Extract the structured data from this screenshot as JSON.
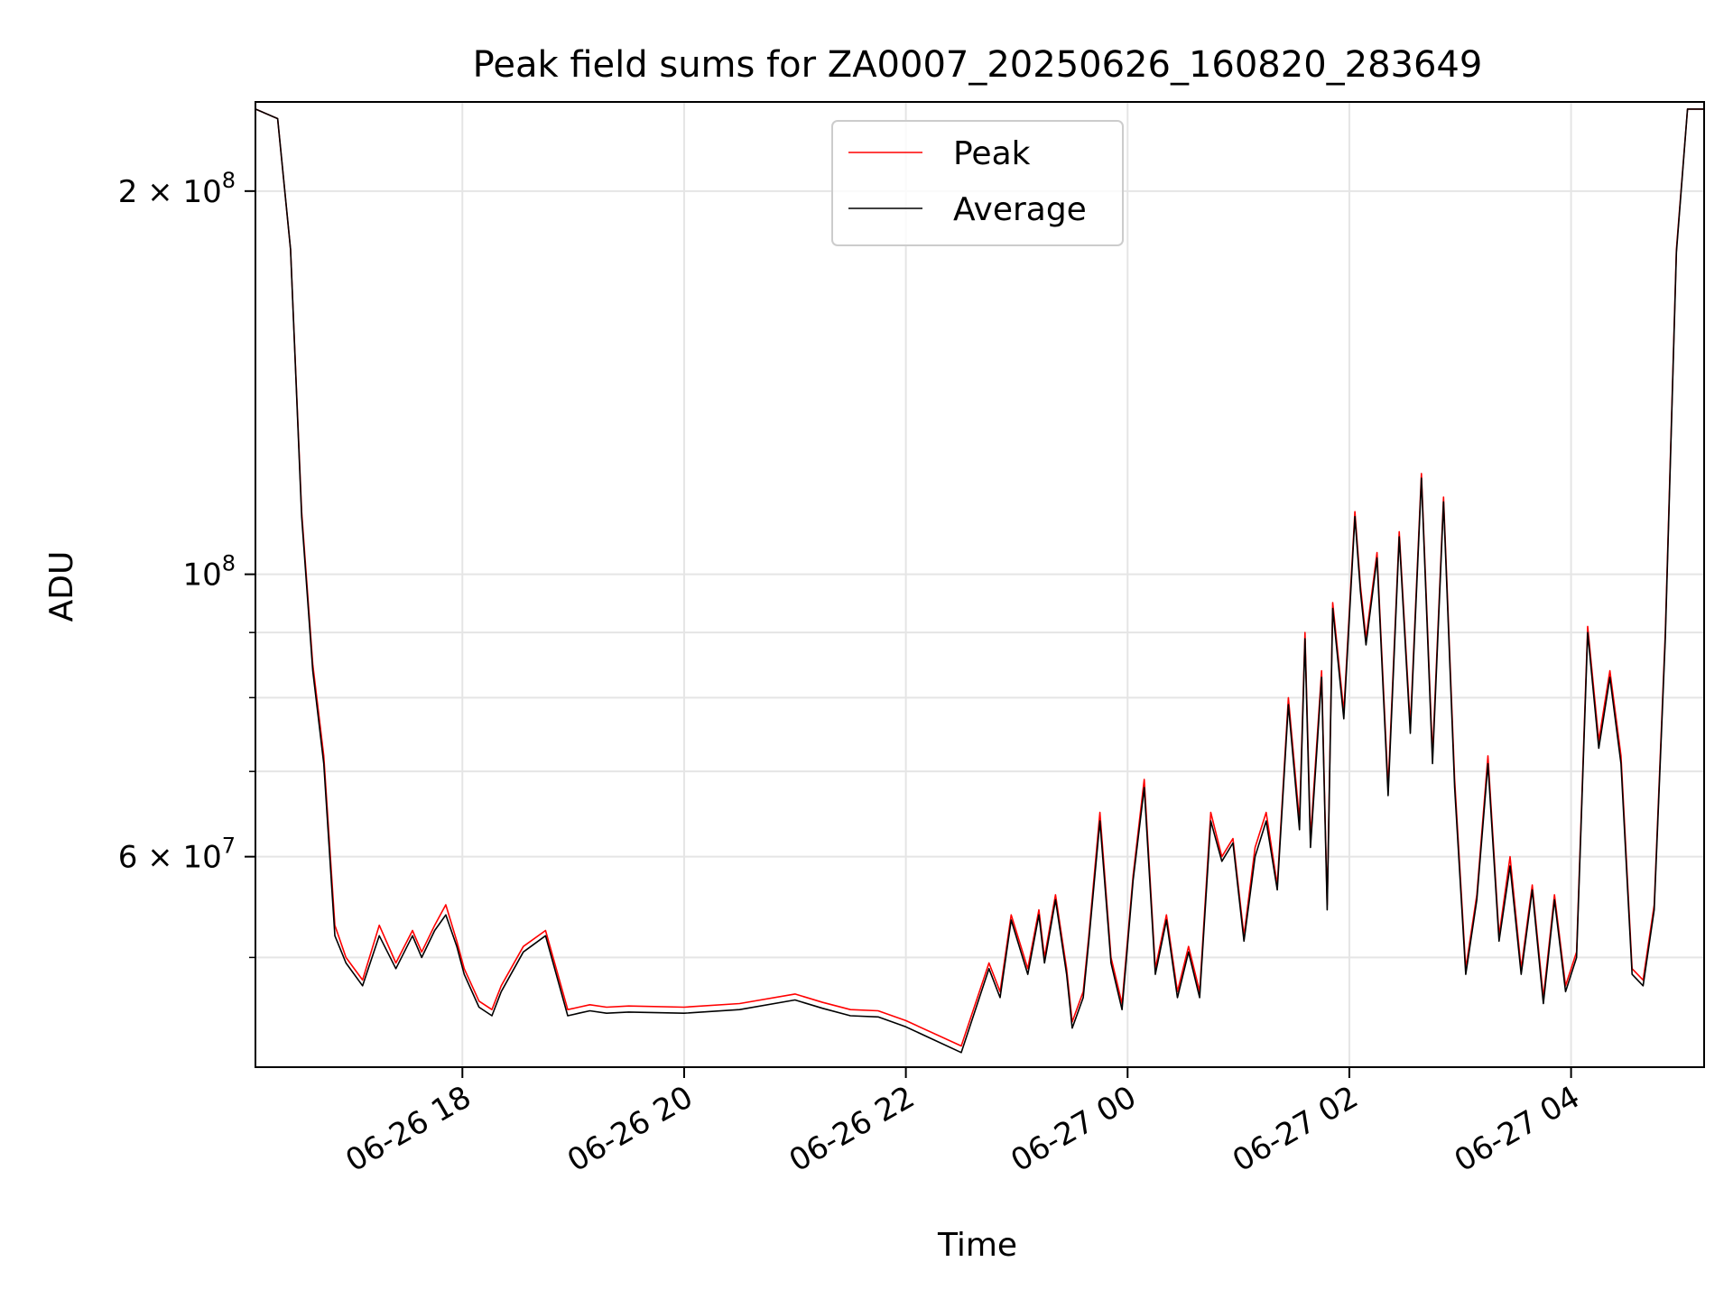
{
  "chart_data": {
    "type": "line",
    "title": "Peak field sums for ZA0007_20250626_160820_283649",
    "xlabel": "Time",
    "ylabel": "ADU",
    "y_scale": "log",
    "grid": true,
    "legend_position": "top-center",
    "ylim": [
      41000000,
      235000000
    ],
    "xlim": [
      "2025-06-26 16:08",
      "2025-06-27 05:12"
    ],
    "x_ticks": [
      {
        "value": "2025-06-26 18:00",
        "label": "06-26 18"
      },
      {
        "value": "2025-06-26 20:00",
        "label": "06-26 20"
      },
      {
        "value": "2025-06-26 22:00",
        "label": "06-26 22"
      },
      {
        "value": "2025-06-27 00:00",
        "label": "06-27 00"
      },
      {
        "value": "2025-06-27 02:00",
        "label": "06-27 02"
      },
      {
        "value": "2025-06-27 04:00",
        "label": "06-27 04"
      }
    ],
    "y_ticks": [
      {
        "value": 60000000,
        "base": "6 × 10",
        "exp": "7"
      },
      {
        "value": 100000000,
        "base": "10",
        "exp": "8"
      },
      {
        "value": 200000000,
        "base": "2 × 10",
        "exp": "8"
      }
    ],
    "y_minor_ticks": [
      50000000,
      70000000,
      80000000,
      90000000
    ],
    "series": [
      {
        "name": "Peak",
        "color": "#ff0000",
        "x": [
          "2025-06-26 16:08",
          "2025-06-26 16:20",
          "2025-06-26 16:27",
          "2025-06-26 16:33",
          "2025-06-26 16:39",
          "2025-06-26 16:45",
          "2025-06-26 16:51",
          "2025-06-26 16:57",
          "2025-06-26 17:06",
          "2025-06-26 17:15",
          "2025-06-26 17:24",
          "2025-06-26 17:33",
          "2025-06-26 17:38",
          "2025-06-26 17:45",
          "2025-06-26 17:51",
          "2025-06-26 17:57",
          "2025-06-26 18:01",
          "2025-06-26 18:09",
          "2025-06-26 18:16",
          "2025-06-26 18:21",
          "2025-06-26 18:33",
          "2025-06-26 18:45",
          "2025-06-26 18:57",
          "2025-06-26 19:03",
          "2025-06-26 19:09",
          "2025-06-26 19:18",
          "2025-06-26 19:30",
          "2025-06-26 20:00",
          "2025-06-26 20:30",
          "2025-06-26 21:00",
          "2025-06-26 21:15",
          "2025-06-26 21:30",
          "2025-06-26 21:45",
          "2025-06-26 22:00",
          "2025-06-26 22:30",
          "2025-06-26 22:45",
          "2025-06-26 22:51",
          "2025-06-26 22:57",
          "2025-06-26 23:06",
          "2025-06-26 23:12",
          "2025-06-26 23:15",
          "2025-06-26 23:21",
          "2025-06-26 23:27",
          "2025-06-26 23:30",
          "2025-06-26 23:36",
          "2025-06-26 23:39",
          "2025-06-26 23:45",
          "2025-06-26 23:51",
          "2025-06-26 23:57",
          "2025-06-27 00:03",
          "2025-06-27 00:09",
          "2025-06-27 00:15",
          "2025-06-27 00:21",
          "2025-06-27 00:27",
          "2025-06-27 00:33",
          "2025-06-27 00:39",
          "2025-06-27 00:45",
          "2025-06-27 00:51",
          "2025-06-27 00:57",
          "2025-06-27 01:03",
          "2025-06-27 01:09",
          "2025-06-27 01:15",
          "2025-06-27 01:21",
          "2025-06-27 01:27",
          "2025-06-27 01:33",
          "2025-06-27 01:36",
          "2025-06-27 01:39",
          "2025-06-27 01:45",
          "2025-06-27 01:48",
          "2025-06-27 01:51",
          "2025-06-27 01:57",
          "2025-06-27 02:03",
          "2025-06-27 02:06",
          "2025-06-27 02:09",
          "2025-06-27 02:15",
          "2025-06-27 02:21",
          "2025-06-27 02:27",
          "2025-06-27 02:33",
          "2025-06-27 02:39",
          "2025-06-27 02:45",
          "2025-06-27 02:51",
          "2025-06-27 02:57",
          "2025-06-27 03:03",
          "2025-06-27 03:09",
          "2025-06-27 03:15",
          "2025-06-27 03:21",
          "2025-06-27 03:27",
          "2025-06-27 03:33",
          "2025-06-27 03:39",
          "2025-06-27 03:45",
          "2025-06-27 03:51",
          "2025-06-27 03:57",
          "2025-06-27 04:03",
          "2025-06-27 04:09",
          "2025-06-27 04:15",
          "2025-06-27 04:21",
          "2025-06-27 04:27",
          "2025-06-27 04:33",
          "2025-06-27 04:39",
          "2025-06-27 04:45",
          "2025-06-27 04:51",
          "2025-06-27 04:57",
          "2025-06-27 05:03",
          "2025-06-27 05:12"
        ],
        "values": [
          232000000,
          228000000,
          180000000,
          112000000,
          85000000,
          72000000,
          53000000,
          50000000,
          48000000,
          53000000,
          49500000,
          52500000,
          50500000,
          53000000,
          55000000,
          51500000,
          49000000,
          46200000,
          45500000,
          47500000,
          51000000,
          52500000,
          45500000,
          45700000,
          45900000,
          45700000,
          45800000,
          45700000,
          46000000,
          46800000,
          46100000,
          45500000,
          45400000,
          44600000,
          42600000,
          49500000,
          47000000,
          54000000,
          49000000,
          54500000,
          50000000,
          56000000,
          49000000,
          44500000,
          47000000,
          52000000,
          65000000,
          50000000,
          46000000,
          58000000,
          69000000,
          49000000,
          54000000,
          47000000,
          51000000,
          47000000,
          65000000,
          60000000,
          62000000,
          52000000,
          61000000,
          65000000,
          57000000,
          80000000,
          64000000,
          90000000,
          62000000,
          84000000,
          55000000,
          95000000,
          78000000,
          112000000,
          98000000,
          89000000,
          104000000,
          68000000,
          108000000,
          76000000,
          120000000,
          72000000,
          115000000,
          69000000,
          49000000,
          56000000,
          72000000,
          52000000,
          60000000,
          49000000,
          57000000,
          46500000,
          56000000,
          47500000,
          50500000,
          91000000,
          74000000,
          84000000,
          72000000,
          49000000,
          48000000,
          55000000,
          90000000,
          180000000,
          232000000,
          232000000
        ]
      },
      {
        "name": "Average",
        "color": "#000000",
        "x": [
          "2025-06-26 16:08",
          "2025-06-26 16:20",
          "2025-06-26 16:27",
          "2025-06-26 16:33",
          "2025-06-26 16:39",
          "2025-06-26 16:45",
          "2025-06-26 16:51",
          "2025-06-26 16:57",
          "2025-06-26 17:06",
          "2025-06-26 17:15",
          "2025-06-26 17:24",
          "2025-06-26 17:33",
          "2025-06-26 17:38",
          "2025-06-26 17:45",
          "2025-06-26 17:51",
          "2025-06-26 17:57",
          "2025-06-26 18:01",
          "2025-06-26 18:09",
          "2025-06-26 18:16",
          "2025-06-26 18:21",
          "2025-06-26 18:33",
          "2025-06-26 18:45",
          "2025-06-26 18:57",
          "2025-06-26 19:03",
          "2025-06-26 19:09",
          "2025-06-26 19:18",
          "2025-06-26 19:30",
          "2025-06-26 20:00",
          "2025-06-26 20:30",
          "2025-06-26 21:00",
          "2025-06-26 21:15",
          "2025-06-26 21:30",
          "2025-06-26 21:45",
          "2025-06-26 22:00",
          "2025-06-26 22:30",
          "2025-06-26 22:45",
          "2025-06-26 22:51",
          "2025-06-26 22:57",
          "2025-06-26 23:06",
          "2025-06-26 23:12",
          "2025-06-26 23:15",
          "2025-06-26 23:21",
          "2025-06-26 23:27",
          "2025-06-26 23:30",
          "2025-06-26 23:36",
          "2025-06-26 23:39",
          "2025-06-26 23:45",
          "2025-06-26 23:51",
          "2025-06-26 23:57",
          "2025-06-27 00:03",
          "2025-06-27 00:09",
          "2025-06-27 00:15",
          "2025-06-27 00:21",
          "2025-06-27 00:27",
          "2025-06-27 00:33",
          "2025-06-27 00:39",
          "2025-06-27 00:45",
          "2025-06-27 00:51",
          "2025-06-27 00:57",
          "2025-06-27 01:03",
          "2025-06-27 01:09",
          "2025-06-27 01:15",
          "2025-06-27 01:21",
          "2025-06-27 01:27",
          "2025-06-27 01:33",
          "2025-06-27 01:36",
          "2025-06-27 01:39",
          "2025-06-27 01:45",
          "2025-06-27 01:48",
          "2025-06-27 01:51",
          "2025-06-27 01:57",
          "2025-06-27 02:03",
          "2025-06-27 02:06",
          "2025-06-27 02:09",
          "2025-06-27 02:15",
          "2025-06-27 02:21",
          "2025-06-27 02:27",
          "2025-06-27 02:33",
          "2025-06-27 02:39",
          "2025-06-27 02:45",
          "2025-06-27 02:51",
          "2025-06-27 02:57",
          "2025-06-27 03:03",
          "2025-06-27 03:09",
          "2025-06-27 03:15",
          "2025-06-27 03:21",
          "2025-06-27 03:27",
          "2025-06-27 03:33",
          "2025-06-27 03:39",
          "2025-06-27 03:45",
          "2025-06-27 03:51",
          "2025-06-27 03:57",
          "2025-06-27 04:03",
          "2025-06-27 04:09",
          "2025-06-27 04:15",
          "2025-06-27 04:21",
          "2025-06-27 04:27",
          "2025-06-27 04:33",
          "2025-06-27 04:39",
          "2025-06-27 04:45",
          "2025-06-27 04:51",
          "2025-06-27 04:57",
          "2025-06-27 05:03",
          "2025-06-27 05:12"
        ],
        "values": [
          232000000,
          228000000,
          180000000,
          111000000,
          84000000,
          71000000,
          52000000,
          49500000,
          47500000,
          52000000,
          49000000,
          52000000,
          50000000,
          52500000,
          54000000,
          51000000,
          48500000,
          45700000,
          45000000,
          47000000,
          50500000,
          52000000,
          45000000,
          45200000,
          45400000,
          45200000,
          45300000,
          45200000,
          45500000,
          46300000,
          45600000,
          45000000,
          44900000,
          44100000,
          42100000,
          49000000,
          46500000,
          53500000,
          48500000,
          54000000,
          49500000,
          55500000,
          48500000,
          44000000,
          46500000,
          51500000,
          64000000,
          49500000,
          45500000,
          57500000,
          68000000,
          48500000,
          53500000,
          46500000,
          50500000,
          46500000,
          64000000,
          59500000,
          61500000,
          51500000,
          60000000,
          64000000,
          56500000,
          79000000,
          63000000,
          89000000,
          61000000,
          83000000,
          54500000,
          94000000,
          77000000,
          111000000,
          97000000,
          88000000,
          103000000,
          67000000,
          107000000,
          75000000,
          119000000,
          71000000,
          114000000,
          68000000,
          48500000,
          55500000,
          71000000,
          51500000,
          59000000,
          48500000,
          56500000,
          46000000,
          55500000,
          47000000,
          50000000,
          90000000,
          73000000,
          83000000,
          71000000,
          48500000,
          47500000,
          54500000,
          89000000,
          179000000,
          232000000,
          232000000
        ]
      }
    ]
  }
}
